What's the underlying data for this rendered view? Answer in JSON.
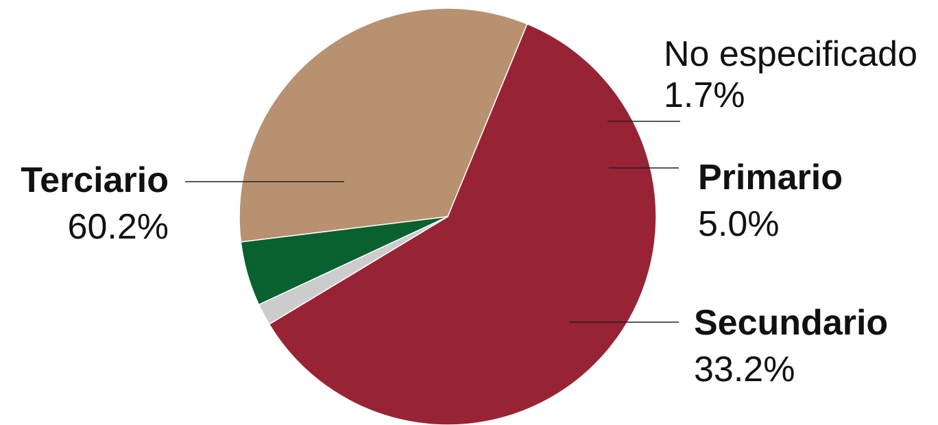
{
  "chart_data": {
    "type": "pie",
    "title": "",
    "slices": [
      {
        "label": "Secundario",
        "value": 33.2,
        "display": "33.2%",
        "color": "#b89170",
        "emphasis": "bold"
      },
      {
        "label": "Terciario",
        "value": 60.2,
        "display": "60.2%",
        "color": "#982335",
        "emphasis": "bold"
      },
      {
        "label": "No especificado",
        "value": 1.7,
        "display": "1.7%",
        "color": "#cccccc",
        "emphasis": "normal"
      },
      {
        "label": "Primario",
        "value": 5.0,
        "display": "5.0%",
        "color": "#08612f",
        "emphasis": "bold"
      }
    ],
    "legend": "none"
  }
}
